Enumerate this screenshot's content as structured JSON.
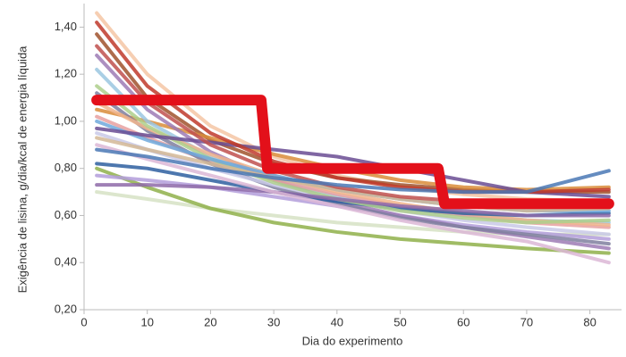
{
  "chart_data": {
    "type": "line",
    "y_label": "Exigência de lisina, g/dia/kcal de energia líquida",
    "x_label": "Dia do experimento",
    "x": [
      2,
      10,
      20,
      30,
      40,
      50,
      60,
      70,
      83
    ],
    "xlim": [
      0,
      85
    ],
    "xticks": [
      0,
      10,
      20,
      30,
      40,
      50,
      60,
      70,
      80
    ],
    "ylim": [
      0.2,
      1.5
    ],
    "yticks": [
      {
        "value": 0.2,
        "label": "0,20"
      },
      {
        "value": 0.4,
        "label": "0,40"
      },
      {
        "value": 0.6,
        "label": "0,60"
      },
      {
        "value": 0.8,
        "label": "0,80"
      },
      {
        "value": 1.0,
        "label": "1,00"
      },
      {
        "value": 1.2,
        "label": "1,20"
      },
      {
        "value": 1.4,
        "label": "1,40"
      }
    ],
    "series": [
      {
        "color": "#f5c6a5",
        "values": [
          1.46,
          1.2,
          0.98,
          0.85,
          0.77,
          0.72,
          0.69,
          0.67,
          0.66
        ]
      },
      {
        "color": "#a0522d",
        "values": [
          1.37,
          1.1,
          0.92,
          0.82,
          0.76,
          0.73,
          0.71,
          0.7,
          0.7
        ]
      },
      {
        "color": "#d98c3a",
        "values": [
          1.05,
          1.0,
          0.93,
          0.86,
          0.8,
          0.75,
          0.72,
          0.71,
          0.72
        ]
      },
      {
        "color": "#d6e2c4",
        "values": [
          0.7,
          0.67,
          0.63,
          0.6,
          0.57,
          0.55,
          0.53,
          0.52,
          0.52
        ]
      },
      {
        "color": "#8fb04a",
        "values": [
          0.8,
          0.72,
          0.63,
          0.57,
          0.53,
          0.5,
          0.48,
          0.46,
          0.44
        ]
      },
      {
        "color": "#9bc7e0",
        "values": [
          1.22,
          1.0,
          0.85,
          0.75,
          0.68,
          0.63,
          0.6,
          0.58,
          0.57
        ]
      },
      {
        "color": "#b39ddb",
        "values": [
          0.77,
          0.75,
          0.72,
          0.68,
          0.64,
          0.6,
          0.56,
          0.53,
          0.5
        ]
      },
      {
        "color": "#9e7bb5",
        "values": [
          1.28,
          1.05,
          0.87,
          0.75,
          0.66,
          0.6,
          0.55,
          0.51,
          0.46
        ]
      },
      {
        "color": "#e8a0a0",
        "values": [
          1.02,
          0.93,
          0.83,
          0.75,
          0.69,
          0.64,
          0.6,
          0.57,
          0.55
        ]
      },
      {
        "color": "#7f7f9f",
        "values": [
          1.12,
          0.96,
          0.82,
          0.72,
          0.65,
          0.59,
          0.55,
          0.52,
          0.48
        ]
      },
      {
        "color": "#c9c9e8",
        "values": [
          0.95,
          0.88,
          0.8,
          0.73,
          0.67,
          0.62,
          0.58,
          0.55,
          0.52
        ]
      },
      {
        "color": "#f0b48c",
        "values": [
          1.08,
          0.97,
          0.86,
          0.77,
          0.7,
          0.65,
          0.61,
          0.58,
          0.56
        ]
      },
      {
        "color": "#2e5fa0",
        "values": [
          0.82,
          0.8,
          0.75,
          0.7,
          0.66,
          0.63,
          0.61,
          0.6,
          0.61
        ]
      },
      {
        "color": "#aecf8c",
        "values": [
          1.15,
          0.98,
          0.84,
          0.74,
          0.67,
          0.62,
          0.59,
          0.57,
          0.58
        ]
      },
      {
        "color": "#8e6aa8",
        "values": [
          0.73,
          0.73,
          0.72,
          0.7,
          0.67,
          0.64,
          0.62,
          0.6,
          0.6
        ]
      },
      {
        "color": "#6fa8dc",
        "values": [
          1.0,
          0.92,
          0.84,
          0.77,
          0.71,
          0.67,
          0.64,
          0.62,
          0.62
        ]
      },
      {
        "color": "#dcb7d6",
        "values": [
          0.9,
          0.84,
          0.77,
          0.7,
          0.64,
          0.58,
          0.53,
          0.49,
          0.4
        ]
      },
      {
        "color": "#d4b996",
        "values": [
          0.93,
          0.88,
          0.82,
          0.76,
          0.71,
          0.67,
          0.64,
          0.62,
          0.63
        ]
      },
      {
        "color": "#6a4c93",
        "values": [
          0.97,
          0.94,
          0.91,
          0.88,
          0.85,
          0.8,
          0.75,
          0.7,
          0.68
        ]
      },
      {
        "color": "#c0504d",
        "values": [
          1.32,
          1.08,
          0.9,
          0.79,
          0.72,
          0.68,
          0.66,
          0.65,
          0.65
        ]
      },
      {
        "color": "#c0392b",
        "values": [
          1.42,
          1.15,
          0.95,
          0.83,
          0.76,
          0.72,
          0.7,
          0.7,
          0.71
        ]
      },
      {
        "color": "#4a78b5",
        "values": [
          0.88,
          0.85,
          0.8,
          0.76,
          0.73,
          0.71,
          0.7,
          0.7,
          0.79
        ]
      },
      {
        "color": "#e3101a",
        "width": 12,
        "x": [
          2,
          28,
          29,
          56,
          57,
          83
        ],
        "values": [
          1.09,
          1.09,
          0.8,
          0.8,
          0.65,
          0.65
        ]
      }
    ]
  }
}
